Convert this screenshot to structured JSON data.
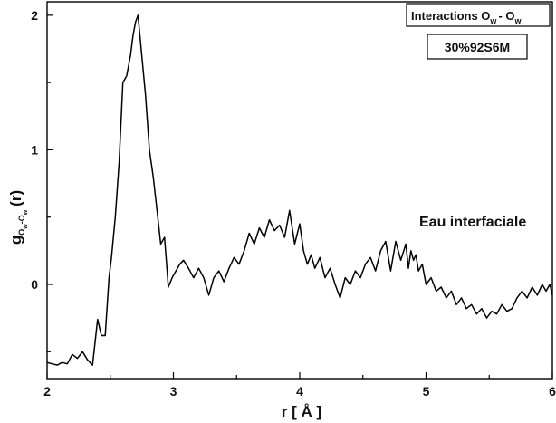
{
  "chart_data": {
    "type": "line",
    "xlabel": "r [ Å ]",
    "ylabel_base": "g",
    "ylabel_sub_1": "O",
    "ylabel_subsub_1": "w",
    "ylabel_sub_dash": "-",
    "ylabel_sub_2": "O",
    "ylabel_subsub_2": "w",
    "ylabel_suffix": "(r)",
    "xlim": [
      2,
      6
    ],
    "ylim": [
      -0.7,
      2.1
    ],
    "x_ticks": [
      2,
      3,
      4,
      5,
      6
    ],
    "x_tick_labels": [
      "2",
      "3",
      "4",
      "5",
      "6"
    ],
    "y_ticks": [
      0,
      1,
      2
    ],
    "y_tick_labels": [
      "0",
      "1",
      "2"
    ],
    "grid": false,
    "legend": {
      "title_base": "Interactions O",
      "title_sub": "w",
      "title_mid": "- O",
      "title_sub2": "w",
      "sample": "30%92S6M",
      "position": "top-right"
    },
    "annotation": "Eau interfaciale",
    "series": [
      {
        "color": "#000000",
        "x": [
          2.0,
          2.04,
          2.08,
          2.12,
          2.16,
          2.2,
          2.24,
          2.28,
          2.32,
          2.36,
          2.4,
          2.43,
          2.46,
          2.49,
          2.51,
          2.54,
          2.57,
          2.6,
          2.63,
          2.66,
          2.68,
          2.7,
          2.72,
          2.75,
          2.78,
          2.81,
          2.84,
          2.87,
          2.9,
          2.93,
          2.96,
          2.99,
          3.02,
          3.05,
          3.08,
          3.12,
          3.16,
          3.2,
          3.24,
          3.28,
          3.32,
          3.36,
          3.4,
          3.44,
          3.48,
          3.52,
          3.56,
          3.6,
          3.64,
          3.68,
          3.72,
          3.76,
          3.8,
          3.84,
          3.88,
          3.92,
          3.96,
          4.0,
          4.03,
          4.06,
          4.09,
          4.12,
          4.16,
          4.2,
          4.24,
          4.28,
          4.32,
          4.36,
          4.4,
          4.44,
          4.48,
          4.52,
          4.56,
          4.6,
          4.64,
          4.68,
          4.72,
          4.76,
          4.8,
          4.84,
          4.86,
          4.88,
          4.9,
          4.92,
          4.94,
          4.97,
          5.0,
          5.04,
          5.08,
          5.12,
          5.16,
          5.2,
          5.24,
          5.28,
          5.32,
          5.36,
          5.4,
          5.44,
          5.48,
          5.52,
          5.56,
          5.6,
          5.64,
          5.68,
          5.72,
          5.76,
          5.8,
          5.84,
          5.88,
          5.92,
          5.95,
          5.98,
          6.0
        ],
        "y": [
          -0.58,
          -0.59,
          -0.6,
          -0.58,
          -0.59,
          -0.52,
          -0.55,
          -0.5,
          -0.56,
          -0.6,
          -0.26,
          -0.38,
          -0.38,
          0.05,
          0.2,
          0.5,
          0.9,
          1.5,
          1.55,
          1.7,
          1.85,
          1.95,
          2.0,
          1.7,
          1.4,
          1.0,
          0.8,
          0.55,
          0.3,
          0.35,
          -0.02,
          0.05,
          0.1,
          0.15,
          0.18,
          0.12,
          0.05,
          0.12,
          0.05,
          -0.08,
          0.05,
          0.1,
          0.02,
          0.12,
          0.2,
          0.15,
          0.25,
          0.38,
          0.3,
          0.42,
          0.35,
          0.48,
          0.4,
          0.44,
          0.35,
          0.55,
          0.3,
          0.45,
          0.25,
          0.15,
          0.22,
          0.12,
          0.2,
          0.05,
          0.12,
          0.0,
          -0.1,
          0.05,
          0.0,
          0.1,
          0.05,
          0.15,
          0.2,
          0.1,
          0.25,
          0.32,
          0.1,
          0.32,
          0.18,
          0.3,
          0.12,
          0.25,
          0.18,
          0.22,
          0.1,
          0.15,
          0.0,
          0.05,
          -0.05,
          -0.02,
          -0.1,
          -0.05,
          -0.15,
          -0.1,
          -0.18,
          -0.15,
          -0.22,
          -0.18,
          -0.25,
          -0.2,
          -0.22,
          -0.15,
          -0.2,
          -0.18,
          -0.1,
          -0.05,
          -0.1,
          -0.02,
          -0.08,
          0.0,
          -0.05,
          0.0,
          -0.08
        ]
      }
    ]
  }
}
